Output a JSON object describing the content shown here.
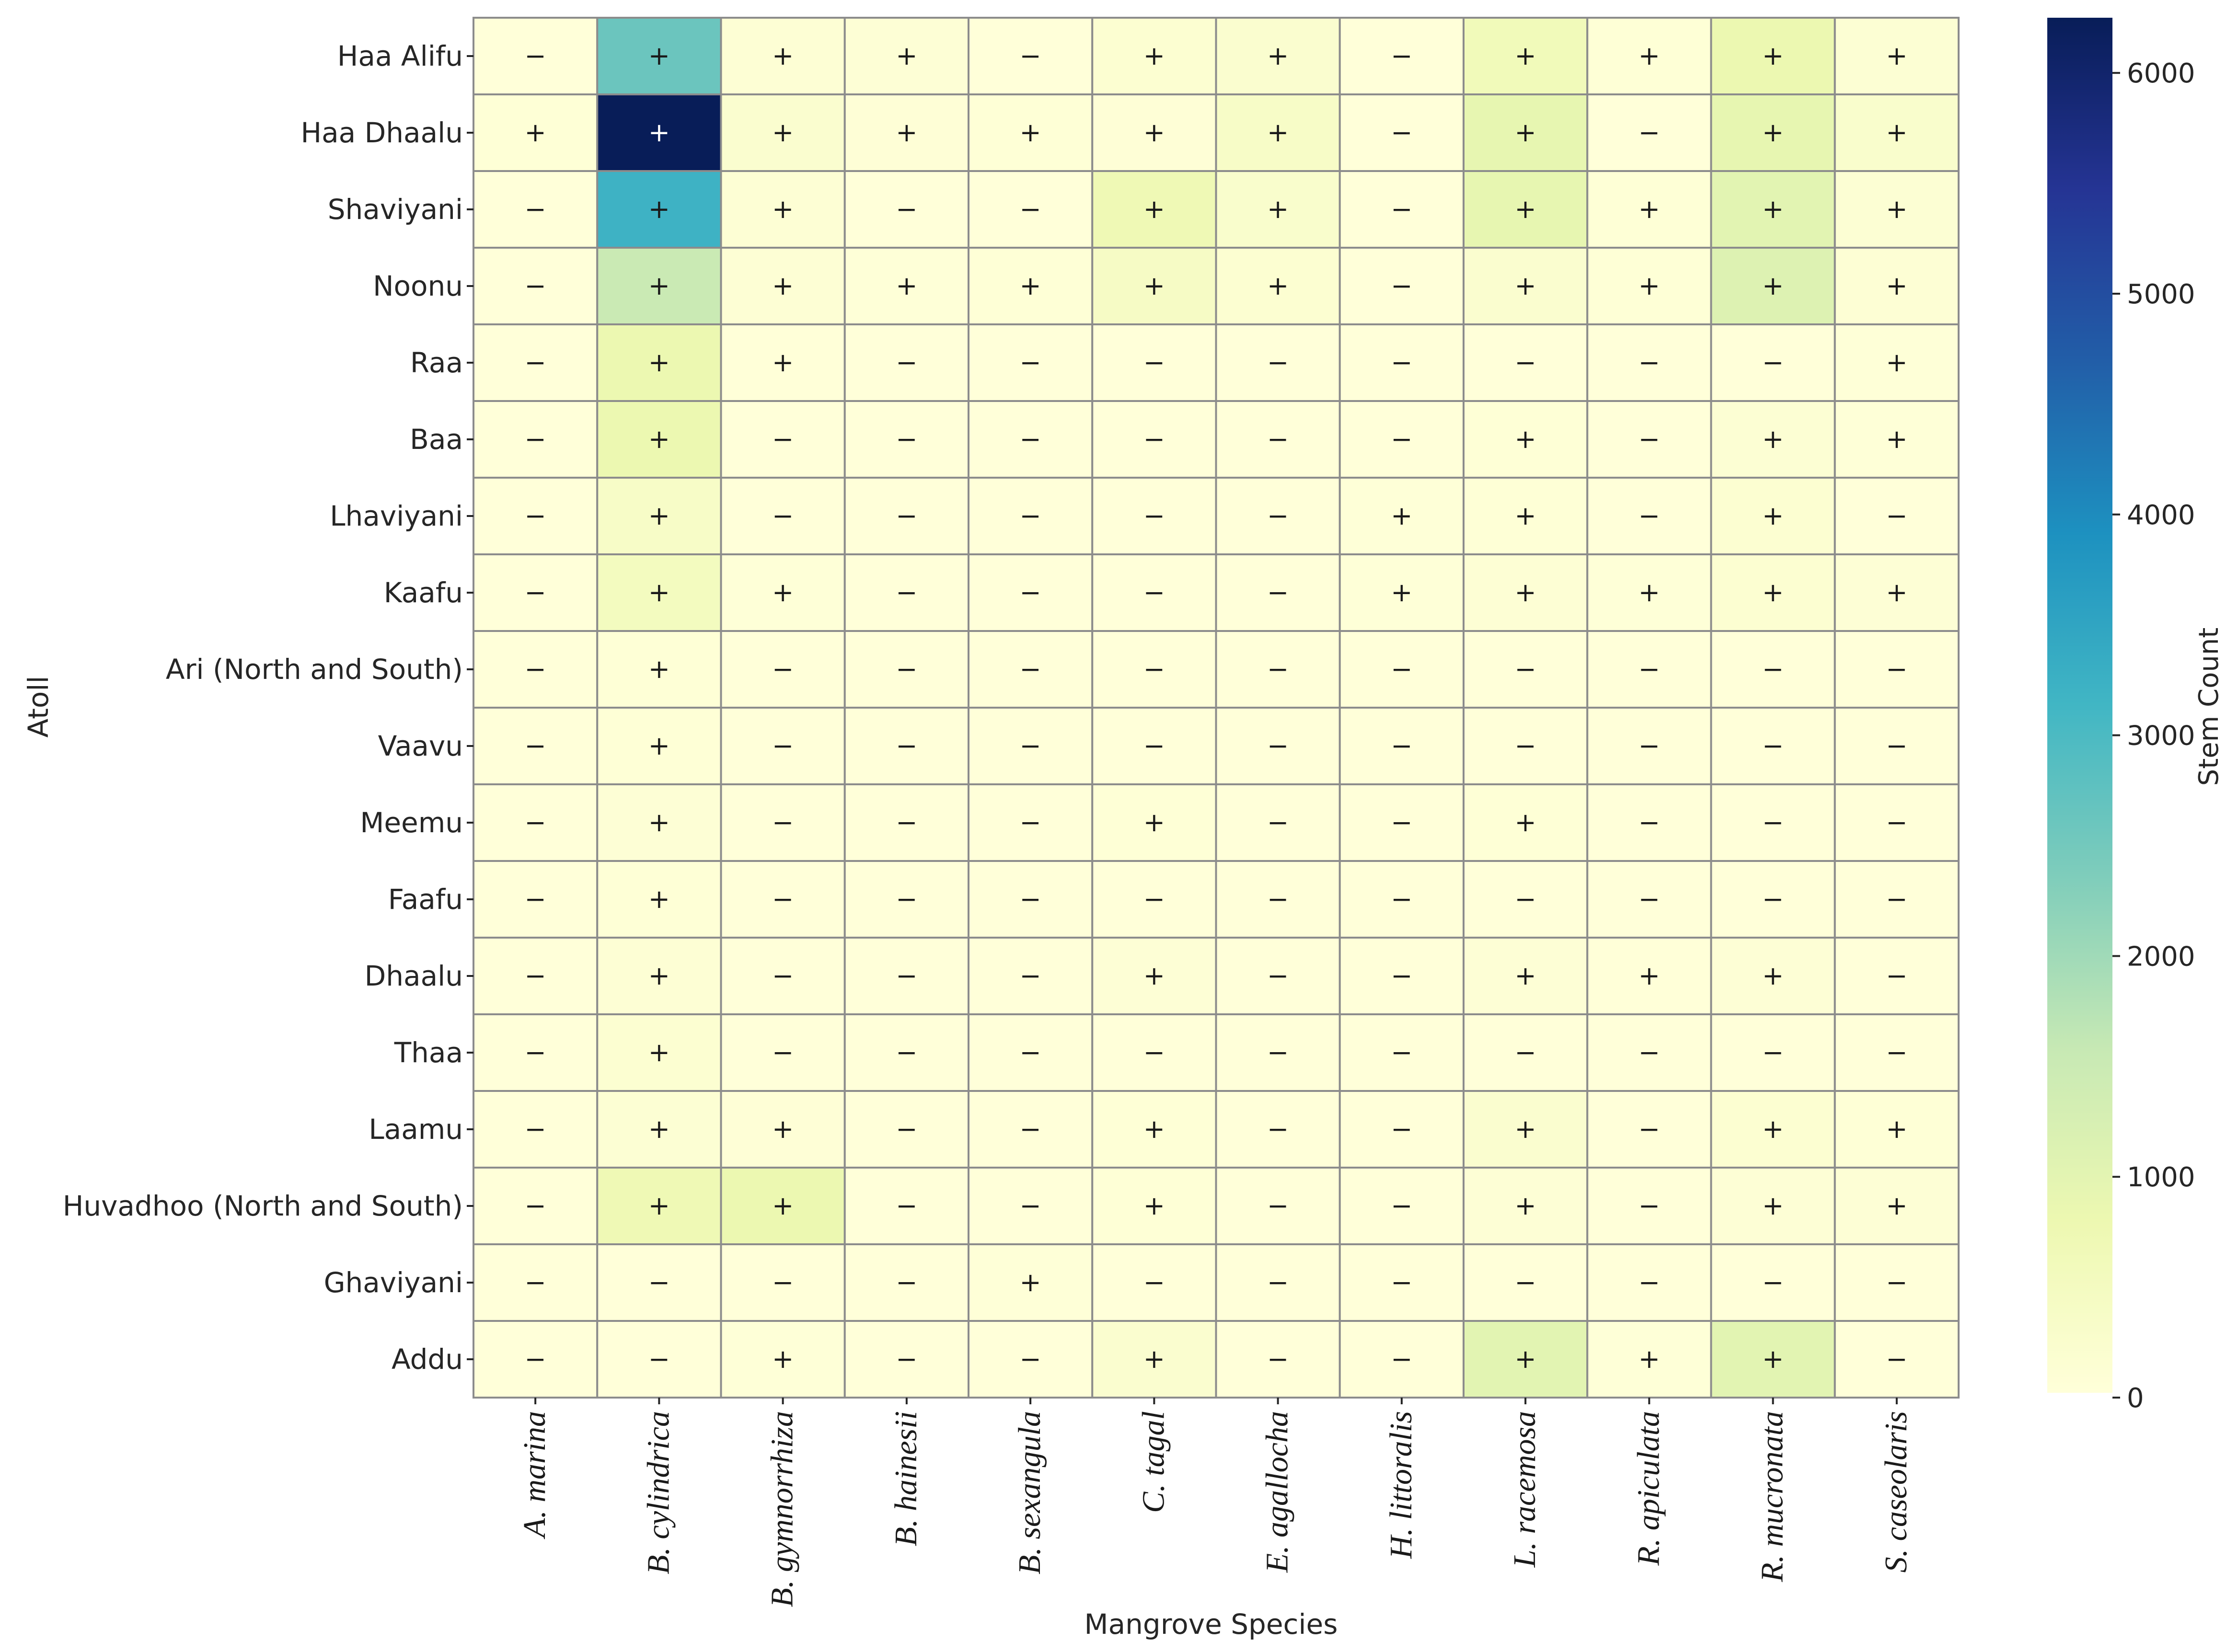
{
  "chart_data": {
    "type": "heatmap",
    "xlabel": "Mangrove Species",
    "ylabel": "Atoll",
    "colorbar_label": "Stem Count",
    "colorbar_ticks": [
      0,
      1000,
      2000,
      3000,
      4000,
      5000,
      6000
    ],
    "value_range": [
      0,
      6250
    ],
    "colormap": "YlGnBu",
    "colormap_stops": [
      "#ffffd9",
      "#edf8b1",
      "#c7e9b4",
      "#7fcdbb",
      "#41b6c4",
      "#1d91c0",
      "#225ea8",
      "#253494",
      "#081d58"
    ],
    "cell_border_color": "#8c8c8c",
    "x": [
      "A. marina",
      "B. cylindrica",
      "B. gymnorrhiza",
      "B. hainesii",
      "B. sexangula",
      "C. tagal",
      "E. agallocha",
      "H. littoralis",
      "L. racemosa",
      "R. apiculata",
      "R. mucronata",
      "S. caseolaris"
    ],
    "y": [
      "Haa Alifu",
      "Haa Dhaalu",
      "Shaviyani",
      "Noonu",
      "Raa",
      "Baa",
      "Lhaviyani",
      "Kaafu",
      "Ari (North and South)",
      "Vaavu",
      "Meemu",
      "Faafu",
      "Dhaalu",
      "Thaa",
      "Laamu",
      "Huvadhoo (North and South)",
      "Ghaviyani",
      "Addu"
    ],
    "values": [
      [
        0,
        2600,
        100,
        80,
        0,
        150,
        200,
        0,
        600,
        50,
        800,
        120
      ],
      [
        50,
        6250,
        200,
        60,
        50,
        60,
        350,
        0,
        900,
        0,
        900,
        250
      ],
      [
        0,
        3200,
        100,
        0,
        0,
        700,
        250,
        0,
        900,
        50,
        1000,
        120
      ],
      [
        0,
        1500,
        100,
        30,
        50,
        400,
        150,
        0,
        200,
        50,
        1100,
        100
      ],
      [
        0,
        800,
        20,
        0,
        0,
        0,
        0,
        0,
        0,
        0,
        0,
        30
      ],
      [
        0,
        800,
        0,
        0,
        0,
        0,
        0,
        0,
        50,
        0,
        120,
        40
      ],
      [
        0,
        350,
        0,
        0,
        0,
        0,
        0,
        30,
        50,
        0,
        150,
        0
      ],
      [
        0,
        500,
        40,
        0,
        0,
        0,
        0,
        30,
        100,
        30,
        150,
        80
      ],
      [
        0,
        50,
        0,
        0,
        0,
        0,
        0,
        0,
        0,
        0,
        0,
        0
      ],
      [
        0,
        50,
        0,
        0,
        0,
        0,
        0,
        0,
        0,
        0,
        0,
        0
      ],
      [
        0,
        80,
        0,
        0,
        0,
        50,
        0,
        0,
        50,
        0,
        0,
        0
      ],
      [
        0,
        50,
        0,
        0,
        0,
        0,
        0,
        0,
        0,
        0,
        0,
        0
      ],
      [
        0,
        100,
        0,
        0,
        0,
        80,
        0,
        0,
        80,
        20,
        80,
        0
      ],
      [
        0,
        150,
        0,
        0,
        0,
        0,
        0,
        0,
        0,
        0,
        0,
        0
      ],
      [
        0,
        120,
        60,
        0,
        0,
        50,
        0,
        0,
        200,
        0,
        150,
        50
      ],
      [
        0,
        700,
        800,
        0,
        0,
        50,
        0,
        0,
        80,
        0,
        80,
        80
      ],
      [
        0,
        0,
        0,
        0,
        30,
        0,
        0,
        0,
        0,
        0,
        0,
        0
      ],
      [
        0,
        0,
        40,
        0,
        0,
        200,
        0,
        0,
        1000,
        40,
        1000,
        0
      ]
    ],
    "annotations": [
      [
        "−",
        "+",
        "+",
        "+",
        "−",
        "+",
        "+",
        "−",
        "+",
        "+",
        "+",
        "+"
      ],
      [
        "+",
        "+",
        "+",
        "+",
        "+",
        "+",
        "+",
        "−",
        "+",
        "−",
        "+",
        "+"
      ],
      [
        "−",
        "+",
        "+",
        "−",
        "−",
        "+",
        "+",
        "−",
        "+",
        "+",
        "+",
        "+"
      ],
      [
        "−",
        "+",
        "+",
        "+",
        "+",
        "+",
        "+",
        "−",
        "+",
        "+",
        "+",
        "+"
      ],
      [
        "−",
        "+",
        "+",
        "−",
        "−",
        "−",
        "−",
        "−",
        "−",
        "−",
        "−",
        "+"
      ],
      [
        "−",
        "+",
        "−",
        "−",
        "−",
        "−",
        "−",
        "−",
        "+",
        "−",
        "+",
        "+"
      ],
      [
        "−",
        "+",
        "−",
        "−",
        "−",
        "−",
        "−",
        "+",
        "+",
        "−",
        "+",
        "−"
      ],
      [
        "−",
        "+",
        "+",
        "−",
        "−",
        "−",
        "−",
        "+",
        "+",
        "+",
        "+",
        "+"
      ],
      [
        "−",
        "+",
        "−",
        "−",
        "−",
        "−",
        "−",
        "−",
        "−",
        "−",
        "−",
        "−"
      ],
      [
        "−",
        "+",
        "−",
        "−",
        "−",
        "−",
        "−",
        "−",
        "−",
        "−",
        "−",
        "−"
      ],
      [
        "−",
        "+",
        "−",
        "−",
        "−",
        "+",
        "−",
        "−",
        "+",
        "−",
        "−",
        "−"
      ],
      [
        "−",
        "+",
        "−",
        "−",
        "−",
        "−",
        "−",
        "−",
        "−",
        "−",
        "−",
        "−"
      ],
      [
        "−",
        "+",
        "−",
        "−",
        "−",
        "+",
        "−",
        "−",
        "+",
        "+",
        "+",
        "−"
      ],
      [
        "−",
        "+",
        "−",
        "−",
        "−",
        "−",
        "−",
        "−",
        "−",
        "−",
        "−",
        "−"
      ],
      [
        "−",
        "+",
        "+",
        "−",
        "−",
        "+",
        "−",
        "−",
        "+",
        "−",
        "+",
        "+"
      ],
      [
        "−",
        "+",
        "+",
        "−",
        "−",
        "+",
        "−",
        "−",
        "+",
        "−",
        "+",
        "+"
      ],
      [
        "−",
        "−",
        "−",
        "−",
        "+",
        "−",
        "−",
        "−",
        "−",
        "−",
        "−",
        "−"
      ],
      [
        "−",
        "−",
        "+",
        "−",
        "−",
        "+",
        "−",
        "−",
        "+",
        "+",
        "+",
        "−"
      ]
    ]
  }
}
